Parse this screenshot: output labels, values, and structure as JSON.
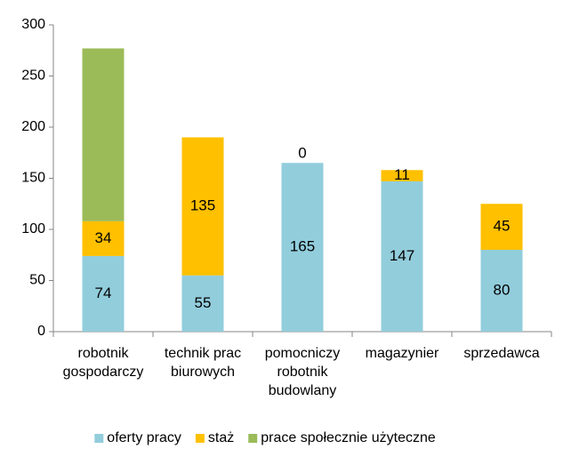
{
  "chart_data": {
    "type": "stacked_bar",
    "categories": [
      [
        "robotnik",
        "gospodarczy"
      ],
      [
        "technik prac",
        "biurowych"
      ],
      [
        "pomocniczy",
        "robotnik",
        "budowlany"
      ],
      [
        "magazynier"
      ],
      [
        "sprzedawca"
      ]
    ],
    "series": [
      {
        "name": "oferty pracy",
        "color": "#92cddc",
        "values": [
          74,
          55,
          165,
          147,
          80
        ],
        "data_labels": true
      },
      {
        "name": "staż",
        "color": "#ffc000",
        "values": [
          34,
          135,
          0,
          11,
          45
        ],
        "data_labels": true
      },
      {
        "name": "prace społecznie użyteczne",
        "color": "#9bbb59",
        "values": [
          169,
          0,
          0,
          0,
          0
        ],
        "data_labels": false
      }
    ],
    "ylim": [
      0,
      300
    ],
    "yticks": [
      0,
      50,
      100,
      150,
      200,
      250,
      300
    ],
    "grid": false,
    "legend": "bottom"
  }
}
